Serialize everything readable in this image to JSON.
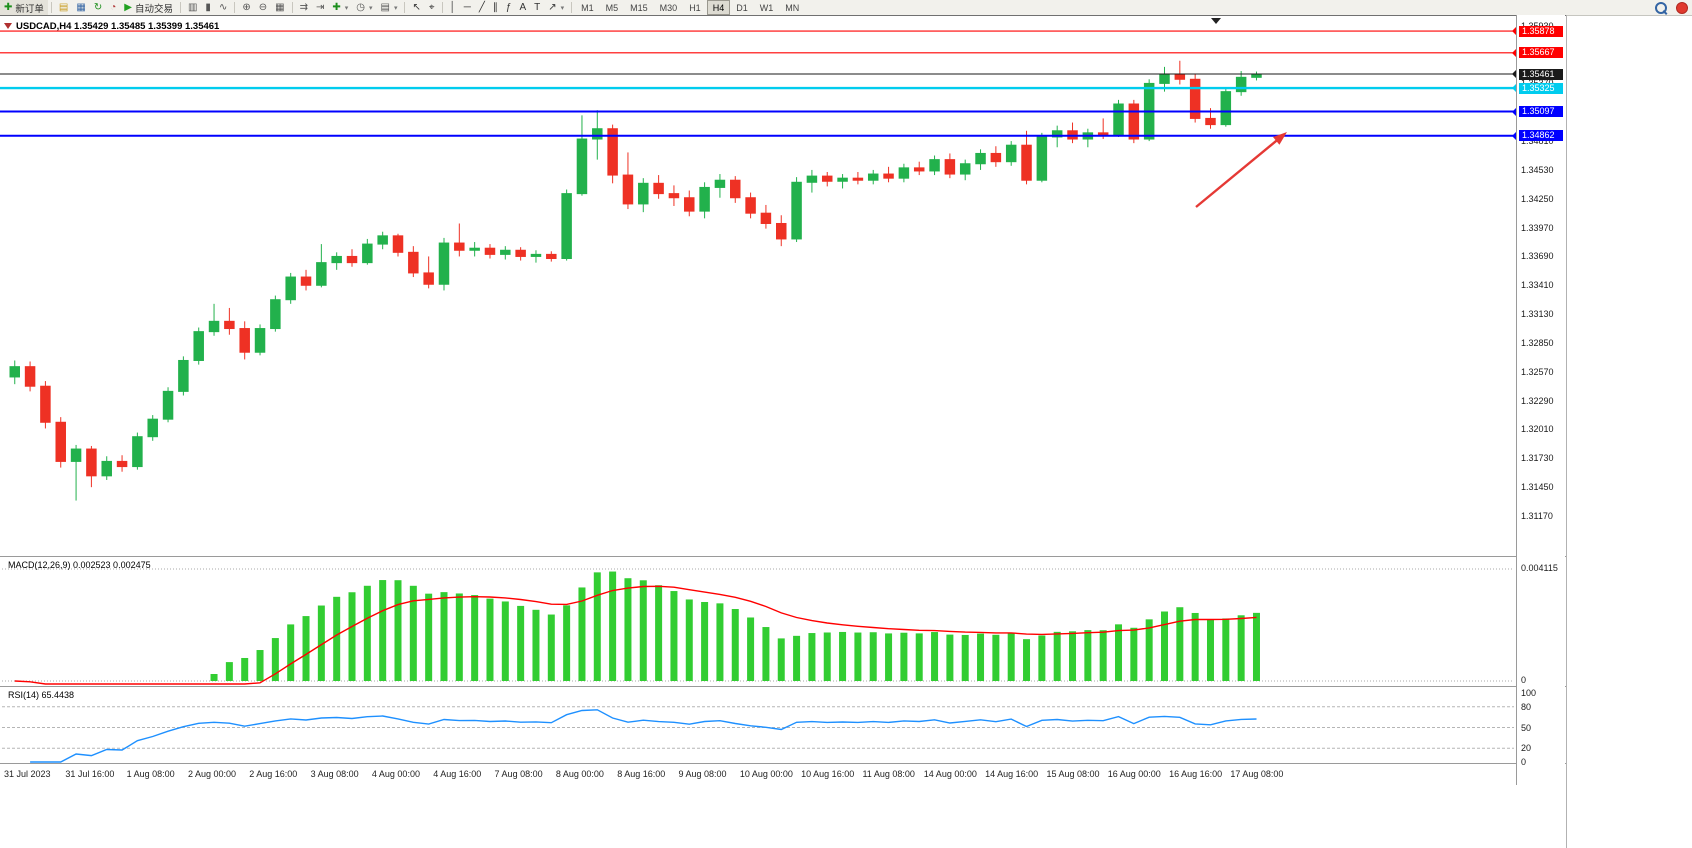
{
  "toolbar": {
    "items": [
      {
        "name": "new-order-button",
        "icon": "new-order-icon",
        "glyph": "✚",
        "color": "#1d8f1d",
        "label": "新订单"
      },
      "sep",
      {
        "name": "new-chart-icon",
        "icon": "new-chart-icon",
        "glyph": "▤",
        "color": "#c79a1d"
      },
      {
        "name": "profiles-icon",
        "icon": "profiles-icon",
        "glyph": "▦",
        "color": "#3465a4"
      },
      {
        "name": "refresh-icon",
        "icon": "refresh-icon",
        "glyph": "↻",
        "color": "#1d8f1d"
      },
      {
        "name": "history-center-icon",
        "icon": "history-center-icon",
        "glyph": "◔",
        "color": "#b03a3a"
      },
      {
        "name": "autotrading-button",
        "icon": "autotrading-play-icon",
        "glyph": "▶",
        "color": "#21a121",
        "label": "自动交易"
      },
      "sep",
      {
        "name": "bar-chart-icon",
        "icon": "bar-chart-icon",
        "glyph": "▥",
        "color": "#555555"
      },
      {
        "name": "candlestick-chart-icon",
        "icon": "candlestick-chart-icon",
        "glyph": "▮",
        "color": "#555555"
      },
      {
        "name": "line-chart-icon",
        "icon": "line-chart-icon",
        "glyph": "∿",
        "color": "#555555"
      },
      "sep",
      {
        "name": "zoom-in-icon",
        "icon": "zoom-in-icon",
        "glyph": "⊕",
        "color": "#555555"
      },
      {
        "name": "zoom-out-icon",
        "icon": "zoom-out-icon",
        "glyph": "⊖",
        "color": "#555555"
      },
      {
        "name": "tile-windows-icon",
        "icon": "tile-windows-icon",
        "glyph": "▦",
        "color": "#555555"
      },
      "sep",
      {
        "name": "auto-scroll-icon",
        "icon": "auto-scroll-icon",
        "glyph": "⇉",
        "color": "#555555"
      },
      {
        "name": "chart-shift-icon",
        "icon": "chart-shift-icon",
        "glyph": "⇥",
        "color": "#555555"
      },
      {
        "name": "indicators-button",
        "icon": "indicators-plus-icon",
        "glyph": "✚",
        "color": "#1d8f1d",
        "caret": true
      },
      {
        "name": "periods-button",
        "icon": "clock-icon",
        "glyph": "◷",
        "color": "#555555",
        "caret": true
      },
      {
        "name": "templates-button",
        "icon": "template-icon",
        "glyph": "▤",
        "color": "#555555",
        "caret": true
      },
      "sep",
      {
        "name": "cursor-icon",
        "icon": "cursor-icon",
        "glyph": "↖",
        "color": "#333333"
      },
      {
        "name": "crosshair-icon",
        "icon": "crosshair-icon",
        "glyph": "⌖",
        "color": "#333333"
      },
      "sep",
      {
        "name": "vertical-line-icon",
        "icon": "vertical-line-icon",
        "glyph": "│",
        "color": "#333333"
      },
      {
        "name": "horizontal-line-icon",
        "icon": "horizontal-line-icon",
        "glyph": "─",
        "color": "#333333"
      },
      {
        "name": "trendline-icon",
        "icon": "trendline-icon",
        "glyph": "╱",
        "color": "#333333"
      },
      {
        "name": "channel-icon",
        "icon": "channel-icon",
        "glyph": "∥",
        "color": "#333333"
      },
      {
        "name": "fibonacci-icon",
        "icon": "fibonacci-icon",
        "glyph": "ƒ",
        "color": "#333333"
      },
      {
        "name": "text-icon",
        "icon": "text-icon",
        "glyph": "A",
        "color": "#333333"
      },
      {
        "name": "label-icon",
        "icon": "label-icon",
        "glyph": "T",
        "color": "#333333"
      },
      {
        "name": "arrows-tool-icon",
        "icon": "arrows-tool-icon",
        "glyph": "↗",
        "color": "#333333",
        "caret": true
      },
      "sep"
    ],
    "timeframes": [
      "M1",
      "M5",
      "M15",
      "M30",
      "H1",
      "H4",
      "D1",
      "W1",
      "MN"
    ],
    "active_timeframe": "H4",
    "right_icons": [
      {
        "name": "search-icon",
        "css": "icon-magnifier"
      },
      {
        "name": "alert-badge-icon",
        "css": "icon-reddot"
      }
    ]
  },
  "chart": {
    "title": "USDCAD,H4 1.35429 1.35485 1.35399 1.35461",
    "macd_label": "MACD(12,26,9) 0.002523 0.002475",
    "rsi_label": "RSI(14) 65.4438",
    "macd_scale": [
      "0.004115",
      "0"
    ],
    "rsi_scale": [
      "100",
      "80",
      "50",
      "20",
      "0"
    ],
    "rsi_levels": [
      80,
      50,
      20
    ],
    "price_ticks": [
      "1.35930",
      "1.35650",
      "1.35370",
      "1.35090",
      "1.34810",
      "1.34530",
      "1.34250",
      "1.33970",
      "1.33690",
      "1.33410",
      "1.33130",
      "1.32850",
      "1.32570",
      "1.32290",
      "1.32010",
      "1.31730",
      "1.31450",
      "1.31170"
    ],
    "price_lines": [
      {
        "label": "1.35878",
        "price": 1.35878,
        "color": "#ff0000",
        "width": 1.2,
        "kind": "resistance-line"
      },
      {
        "label": "1.35667",
        "price": 1.35667,
        "color": "#ff0000",
        "width": 1.2,
        "kind": "resistance-line"
      },
      {
        "label": "1.35461",
        "price": 1.35461,
        "color": "#1a1a1a",
        "width": 1,
        "kind": "bid-price-line"
      },
      {
        "label": "1.35325",
        "price": 1.35325,
        "color": "#00ccee",
        "width": 2.4,
        "kind": "support-line"
      },
      {
        "label": "1.35097",
        "price": 1.35097,
        "color": "#0000ff",
        "width": 2,
        "kind": "support-line"
      },
      {
        "label": "1.34862",
        "price": 1.34862,
        "color": "#0000ff",
        "width": 2,
        "kind": "support-line"
      }
    ],
    "time_labels": [
      "31 Jul 2023",
      "31 Jul 16:00",
      "1 Aug 08:00",
      "2 Aug 00:00",
      "2 Aug 16:00",
      "3 Aug 08:00",
      "4 Aug 00:00",
      "4 Aug 16:00",
      "7 Aug 08:00",
      "8 Aug 00:00",
      "8 Aug 16:00",
      "9 Aug 08:00",
      "10 Aug 00:00",
      "10 Aug 16:00",
      "11 Aug 08:00",
      "14 Aug 00:00",
      "14 Aug 16:00",
      "15 Aug 08:00",
      "16 Aug 00:00",
      "16 Aug 16:00",
      "17 Aug 08:00"
    ],
    "colors": {
      "up": "#22b14c",
      "down": "#ee3124",
      "macd_hist": "#32cd32",
      "macd_signal": "#ff0000",
      "rsi_line": "#1e90ff",
      "arrow": "#e53935",
      "grid": "#b5b5b5",
      "border": "#9a9a9a"
    }
  },
  "chart_data": {
    "type": "candlestick",
    "symbol": "USDCAD",
    "timeframe": "H4",
    "current_ohlc": {
      "open": "1.35429",
      "high": "1.35485",
      "low": "1.35399",
      "close": "1.35461"
    },
    "y_axis": {
      "min": 1.3078,
      "max": 1.36005
    },
    "indicators": [
      {
        "name": "MACD",
        "params": [
          12,
          26,
          9
        ],
        "values_text": [
          "0.002523",
          "0.002475"
        ],
        "scale_max": 0.004115
      },
      {
        "name": "RSI",
        "params": [
          14
        ],
        "value_text": "65.4438",
        "levels": [
          80,
          50,
          20
        ]
      }
    ],
    "ohlc": [
      [
        1.3252,
        1.3268,
        1.3245,
        1.3262
      ],
      [
        1.3262,
        1.3267,
        1.3238,
        1.3243
      ],
      [
        1.3243,
        1.3248,
        1.3202,
        1.3208
      ],
      [
        1.3208,
        1.3213,
        1.3164,
        1.317
      ],
      [
        1.317,
        1.3186,
        1.3132,
        1.3182
      ],
      [
        1.3182,
        1.3185,
        1.3145,
        1.3156
      ],
      [
        1.3156,
        1.3175,
        1.3152,
        1.317
      ],
      [
        1.317,
        1.3176,
        1.316,
        1.3165
      ],
      [
        1.3165,
        1.3198,
        1.3162,
        1.3194
      ],
      [
        1.3194,
        1.3215,
        1.319,
        1.3211
      ],
      [
        1.3211,
        1.3242,
        1.3208,
        1.3238
      ],
      [
        1.3238,
        1.3272,
        1.3234,
        1.3268
      ],
      [
        1.3268,
        1.33,
        1.3264,
        1.3296
      ],
      [
        1.3296,
        1.3323,
        1.3292,
        1.3306
      ],
      [
        1.3306,
        1.3319,
        1.3293,
        1.3299
      ],
      [
        1.3299,
        1.3306,
        1.3269,
        1.3276
      ],
      [
        1.3276,
        1.3303,
        1.3273,
        1.3299
      ],
      [
        1.3299,
        1.3331,
        1.3296,
        1.3327
      ],
      [
        1.3327,
        1.3353,
        1.3323,
        1.3349
      ],
      [
        1.3349,
        1.3356,
        1.3336,
        1.3341
      ],
      [
        1.3341,
        1.3381,
        1.3339,
        1.3363
      ],
      [
        1.3363,
        1.3373,
        1.3356,
        1.3369
      ],
      [
        1.3369,
        1.3376,
        1.3359,
        1.3363
      ],
      [
        1.3363,
        1.3386,
        1.3361,
        1.3381
      ],
      [
        1.3381,
        1.3393,
        1.3376,
        1.3389
      ],
      [
        1.3389,
        1.3391,
        1.3369,
        1.3373
      ],
      [
        1.3373,
        1.3379,
        1.3349,
        1.3353
      ],
      [
        1.3353,
        1.3369,
        1.3338,
        1.3342
      ],
      [
        1.3342,
        1.3387,
        1.3336,
        1.3382
      ],
      [
        1.3382,
        1.3401,
        1.3369,
        1.3375
      ],
      [
        1.3375,
        1.3383,
        1.3369,
        1.3377
      ],
      [
        1.3377,
        1.3381,
        1.3367,
        1.3371
      ],
      [
        1.3371,
        1.3379,
        1.3366,
        1.3375
      ],
      [
        1.3375,
        1.3378,
        1.3365,
        1.3369
      ],
      [
        1.3369,
        1.3375,
        1.3363,
        1.3371
      ],
      [
        1.3371,
        1.3374,
        1.3364,
        1.3367
      ],
      [
        1.3367,
        1.3434,
        1.3365,
        1.343
      ],
      [
        1.343,
        1.3506,
        1.3428,
        1.3483
      ],
      [
        1.3483,
        1.3511,
        1.3463,
        1.3493
      ],
      [
        1.3493,
        1.3497,
        1.344,
        1.3448
      ],
      [
        1.3448,
        1.347,
        1.3415,
        1.342
      ],
      [
        1.342,
        1.3445,
        1.3412,
        1.344
      ],
      [
        1.344,
        1.3448,
        1.3425,
        1.343
      ],
      [
        1.343,
        1.3438,
        1.3418,
        1.3426
      ],
      [
        1.3426,
        1.3433,
        1.3408,
        1.3413
      ],
      [
        1.3413,
        1.3441,
        1.3406,
        1.3436
      ],
      [
        1.3436,
        1.3449,
        1.3426,
        1.3443
      ],
      [
        1.3443,
        1.3447,
        1.3421,
        1.3426
      ],
      [
        1.3426,
        1.3431,
        1.3406,
        1.3411
      ],
      [
        1.3411,
        1.3419,
        1.3396,
        1.3401
      ],
      [
        1.3401,
        1.3409,
        1.3379,
        1.3386
      ],
      [
        1.3386,
        1.3446,
        1.3383,
        1.3441
      ],
      [
        1.3441,
        1.3453,
        1.3431,
        1.3447
      ],
      [
        1.3447,
        1.3451,
        1.3437,
        1.3442
      ],
      [
        1.3442,
        1.3449,
        1.3435,
        1.3445
      ],
      [
        1.3445,
        1.3451,
        1.3439,
        1.3443
      ],
      [
        1.3443,
        1.3453,
        1.3439,
        1.3449
      ],
      [
        1.3449,
        1.3456,
        1.3441,
        1.3445
      ],
      [
        1.3445,
        1.3459,
        1.3441,
        1.3455
      ],
      [
        1.3455,
        1.3461,
        1.3448,
        1.3452
      ],
      [
        1.3452,
        1.3467,
        1.3448,
        1.3463
      ],
      [
        1.3463,
        1.3469,
        1.3445,
        1.3449
      ],
      [
        1.3449,
        1.3463,
        1.3443,
        1.3459
      ],
      [
        1.3459,
        1.3473,
        1.3453,
        1.3469
      ],
      [
        1.3469,
        1.3476,
        1.3456,
        1.3461
      ],
      [
        1.3461,
        1.3481,
        1.3457,
        1.3477
      ],
      [
        1.3477,
        1.3491,
        1.3439,
        1.3443
      ],
      [
        1.3443,
        1.3489,
        1.3441,
        1.3485
      ],
      [
        1.3485,
        1.3496,
        1.3475,
        1.3491
      ],
      [
        1.3491,
        1.3499,
        1.3479,
        1.3483
      ],
      [
        1.3483,
        1.3493,
        1.3475,
        1.3489
      ],
      [
        1.3489,
        1.3503,
        1.3483,
        1.3487
      ],
      [
        1.3487,
        1.3521,
        1.3485,
        1.3517
      ],
      [
        1.3517,
        1.3521,
        1.3479,
        1.3483
      ],
      [
        1.3483,
        1.3541,
        1.3481,
        1.3537
      ],
      [
        1.3537,
        1.3553,
        1.3529,
        1.3546
      ],
      [
        1.3546,
        1.3559,
        1.3536,
        1.3541
      ],
      [
        1.3541,
        1.3546,
        1.3499,
        1.3503
      ],
      [
        1.3503,
        1.3513,
        1.3493,
        1.3497
      ],
      [
        1.3497,
        1.3533,
        1.3495,
        1.3529
      ],
      [
        1.3529,
        1.3549,
        1.3525,
        1.35429
      ],
      [
        1.35429,
        1.35485,
        1.35399,
        1.35461
      ]
    ]
  }
}
